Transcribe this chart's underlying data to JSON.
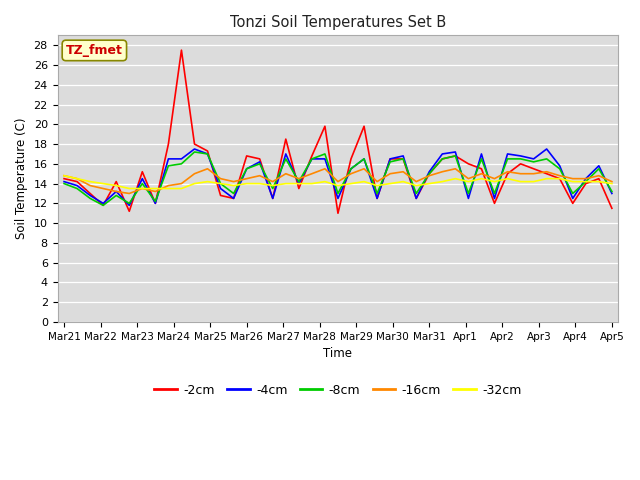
{
  "title": "Tonzi Soil Temperatures Set B",
  "xlabel": "Time",
  "ylabel": "Soil Temperature (C)",
  "ylim": [
    0,
    29
  ],
  "yticks": [
    0,
    2,
    4,
    6,
    8,
    10,
    12,
    14,
    16,
    18,
    20,
    22,
    24,
    26,
    28
  ],
  "bg_color": "#e8e8e8",
  "series_colors": {
    "-2cm": "#ff0000",
    "-4cm": "#0000ff",
    "-8cm": "#00cc00",
    "-16cm": "#ff8800",
    "-32cm": "#ffff00"
  },
  "x_labels": [
    "Mar 21",
    "Mar 22",
    "Mar 23",
    "Mar 24",
    "Mar 25",
    "Mar 26",
    "Mar 27",
    "Mar 28",
    "Mar 29",
    "Mar 30",
    "Mar 31",
    "Apr 1",
    "Apr 2",
    "Apr 3",
    "Apr 4",
    "Apr 5"
  ],
  "data": {
    "-2cm": [
      14.5,
      14.2,
      13.0,
      11.8,
      14.2,
      11.2,
      15.2,
      12.0,
      18.0,
      27.5,
      18.0,
      17.3,
      12.8,
      12.5,
      16.8,
      16.5,
      12.5,
      18.5,
      13.5,
      16.8,
      19.8,
      11.0,
      16.5,
      19.8,
      12.5,
      16.5,
      16.5,
      12.5,
      15.0,
      16.5,
      16.8,
      16.0,
      15.5,
      12.0,
      15.0,
      16.0,
      15.5,
      15.0,
      14.5,
      12.0,
      14.0,
      14.5,
      11.5
    ],
    "-4cm": [
      14.2,
      13.8,
      12.8,
      12.0,
      13.2,
      11.8,
      14.5,
      12.0,
      16.5,
      16.5,
      17.5,
      17.0,
      13.5,
      12.5,
      15.5,
      16.2,
      12.5,
      17.0,
      14.0,
      16.5,
      16.5,
      12.5,
      15.5,
      16.5,
      12.5,
      16.5,
      16.8,
      12.5,
      15.2,
      17.0,
      17.2,
      12.5,
      17.0,
      12.5,
      17.0,
      16.8,
      16.5,
      17.5,
      15.8,
      12.5,
      14.5,
      15.8,
      13.0
    ],
    "-8cm": [
      14.0,
      13.5,
      12.5,
      11.8,
      12.8,
      12.0,
      14.0,
      12.2,
      15.8,
      16.0,
      17.2,
      17.0,
      14.0,
      13.0,
      15.5,
      16.0,
      13.5,
      16.5,
      14.2,
      16.5,
      17.0,
      13.0,
      15.5,
      16.5,
      13.0,
      16.2,
      16.5,
      13.0,
      15.0,
      16.5,
      16.8,
      13.0,
      16.5,
      13.0,
      16.5,
      16.5,
      16.2,
      16.5,
      15.5,
      13.0,
      14.2,
      15.5,
      13.2
    ],
    "-16cm": [
      14.8,
      14.5,
      13.8,
      13.5,
      13.2,
      13.0,
      13.5,
      13.2,
      13.8,
      14.0,
      15.0,
      15.5,
      14.5,
      14.2,
      14.5,
      14.8,
      14.2,
      15.0,
      14.5,
      15.0,
      15.5,
      14.2,
      15.0,
      15.5,
      14.2,
      15.0,
      15.2,
      14.2,
      14.8,
      15.2,
      15.5,
      14.5,
      15.0,
      14.5,
      15.2,
      15.0,
      15.0,
      15.2,
      14.8,
      14.5,
      14.5,
      14.8,
      14.2
    ],
    "-32cm": [
      14.8,
      14.5,
      14.2,
      14.0,
      13.8,
      13.5,
      13.5,
      13.5,
      13.5,
      13.5,
      14.0,
      14.2,
      14.0,
      13.8,
      14.0,
      14.0,
      13.8,
      14.0,
      14.0,
      14.0,
      14.2,
      13.8,
      14.0,
      14.2,
      13.8,
      14.0,
      14.2,
      13.8,
      14.0,
      14.2,
      14.5,
      14.2,
      14.5,
      14.2,
      14.5,
      14.2,
      14.2,
      14.5,
      14.5,
      14.2,
      14.2,
      14.2,
      14.0
    ]
  }
}
